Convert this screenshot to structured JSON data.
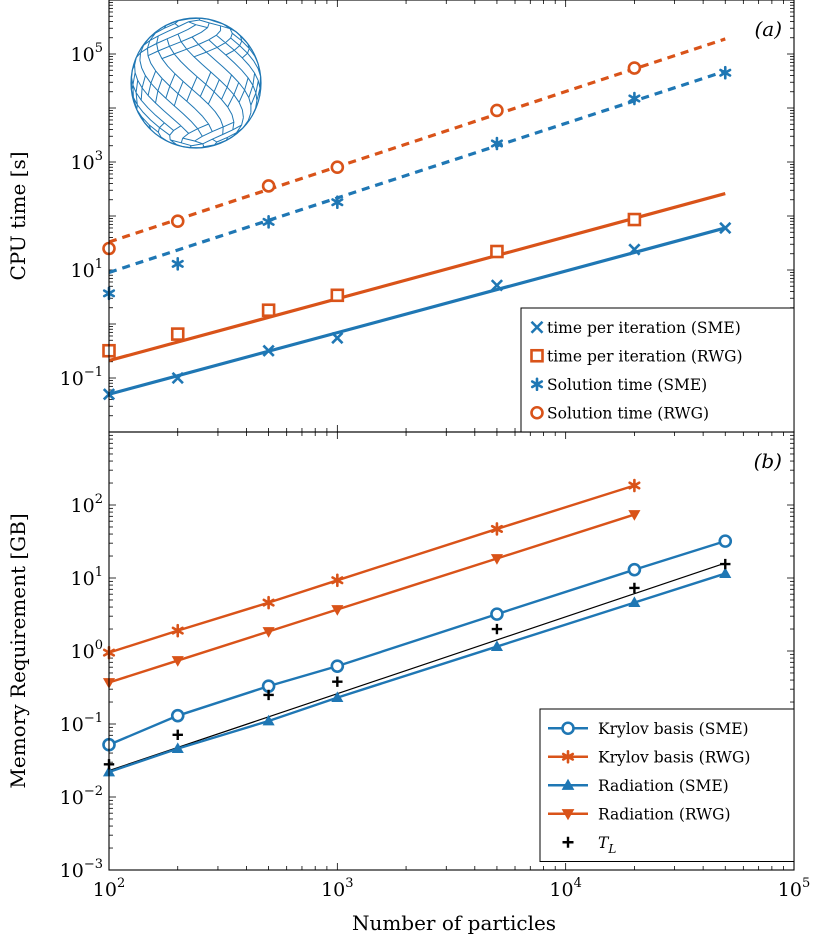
{
  "colors": {
    "blue": "#1f77b4",
    "orange": "#d95319",
    "black": "#000000"
  },
  "chart_data": [
    {
      "type": "scatter",
      "panel_label": "(a)",
      "ylabel": "CPU time [s]",
      "x_scale": "log",
      "y_scale": "log",
      "xlim": [
        100,
        100000
      ],
      "ylim": [
        0.01,
        1000000
      ],
      "y_ticks": [
        {
          "base": "10",
          "exp": "5",
          "value": 100000
        },
        {
          "base": "10",
          "exp": "3",
          "value": 1000
        },
        {
          "base": "10",
          "exp": "1",
          "value": 10
        },
        {
          "base": "10",
          "exp": "−1",
          "value": 0.1
        }
      ],
      "legend_position": "bottom-right",
      "inset_icon": "geodesic-sphere-icon",
      "series": [
        {
          "name": "time per iteration (SME)",
          "color": "#1f77b4",
          "marker": "x",
          "x": [
            100,
            200,
            500,
            1000,
            5000,
            20000,
            50000
          ],
          "y": [
            0.05,
            0.1,
            0.32,
            0.55,
            5.2,
            24,
            60
          ]
        },
        {
          "name": "time per iteration (RWG)",
          "color": "#d95319",
          "marker": "square",
          "x": [
            100,
            200,
            500,
            1000,
            5000,
            20000
          ],
          "y": [
            0.32,
            0.65,
            1.8,
            3.4,
            22,
            86
          ]
        },
        {
          "name": "Solution time (SME)",
          "color": "#1f77b4",
          "marker": "asterisk",
          "x": [
            100,
            200,
            500,
            1000,
            5000,
            20000,
            50000
          ],
          "y": [
            3.7,
            13,
            78,
            180,
            2200,
            15000,
            45000
          ]
        },
        {
          "name": "Solution time (RWG)",
          "color": "#d95319",
          "marker": "circle",
          "x": [
            100,
            200,
            500,
            1000,
            5000,
            20000
          ],
          "y": [
            25,
            80,
            360,
            800,
            9000,
            55000
          ]
        }
      ],
      "fits": [
        {
          "color": "#1f77b4",
          "style": "solid",
          "x": [
            100,
            50000
          ],
          "y": [
            0.05,
            60
          ]
        },
        {
          "color": "#d95319",
          "style": "solid",
          "x": [
            100,
            50000
          ],
          "y": [
            0.21,
            260
          ]
        },
        {
          "color": "#1f77b4",
          "style": "dashed",
          "x": [
            100,
            50000
          ],
          "y": [
            9,
            48000
          ]
        },
        {
          "color": "#d95319",
          "style": "dashed",
          "x": [
            100,
            50000
          ],
          "y": [
            33,
            190000
          ]
        }
      ]
    },
    {
      "type": "line",
      "panel_label": "(b)",
      "xlabel": "Number of particles",
      "ylabel": "Memory Requirement [GB]",
      "x_scale": "log",
      "y_scale": "log",
      "xlim": [
        100,
        100000
      ],
      "ylim": [
        0.001,
        1000
      ],
      "x_ticks": [
        {
          "base": "10",
          "exp": "2",
          "value": 100
        },
        {
          "base": "10",
          "exp": "3",
          "value": 1000
        },
        {
          "base": "10",
          "exp": "4",
          "value": 10000
        },
        {
          "base": "10",
          "exp": "5",
          "value": 100000
        }
      ],
      "y_ticks": [
        {
          "base": "10",
          "exp": "2",
          "value": 100
        },
        {
          "base": "10",
          "exp": "1",
          "value": 10
        },
        {
          "base": "10",
          "exp": "0",
          "value": 1
        },
        {
          "base": "10",
          "exp": "−1",
          "value": 0.1
        },
        {
          "base": "10",
          "exp": "−2",
          "value": 0.01
        },
        {
          "base": "10",
          "exp": "−3",
          "value": 0.001
        }
      ],
      "legend_position": "bottom-right",
      "series": [
        {
          "name": "Krylov basis (SME)",
          "color": "#1f77b4",
          "marker": "circle",
          "line": true,
          "x": [
            100,
            200,
            500,
            1000,
            5000,
            20000,
            50000
          ],
          "y": [
            0.052,
            0.13,
            0.33,
            0.62,
            3.2,
            13,
            32
          ]
        },
        {
          "name": "Krylov basis (RWG)",
          "color": "#d95319",
          "marker": "asterisk",
          "line": true,
          "x": [
            100,
            200,
            500,
            1000,
            5000,
            20000
          ],
          "y": [
            0.95,
            1.9,
            4.6,
            9.3,
            47,
            185
          ]
        },
        {
          "name": "Radiation (SME)",
          "color": "#1f77b4",
          "marker": "triangle-up",
          "line": true,
          "x": [
            100,
            200,
            500,
            1000,
            5000,
            20000,
            50000
          ],
          "y": [
            0.022,
            0.046,
            0.11,
            0.23,
            1.15,
            4.6,
            11.5
          ]
        },
        {
          "name": "Radiation (RWG)",
          "color": "#d95319",
          "marker": "triangle-down",
          "line": true,
          "x": [
            100,
            200,
            500,
            1000,
            5000,
            20000
          ],
          "y": [
            0.37,
            0.74,
            1.85,
            3.7,
            18.5,
            74
          ]
        },
        {
          "name_base": "T",
          "name_sub": "L",
          "color": "#000000",
          "marker": "plus",
          "line": false,
          "x": [
            100,
            200,
            500,
            1000,
            5000,
            20000,
            50000
          ],
          "y": [
            0.028,
            0.071,
            0.25,
            0.38,
            2.0,
            7.3,
            15.5
          ]
        }
      ],
      "fits": [
        {
          "color": "#000000",
          "style": "thin",
          "x": [
            100,
            50000
          ],
          "y": [
            0.023,
            16
          ]
        }
      ]
    }
  ]
}
